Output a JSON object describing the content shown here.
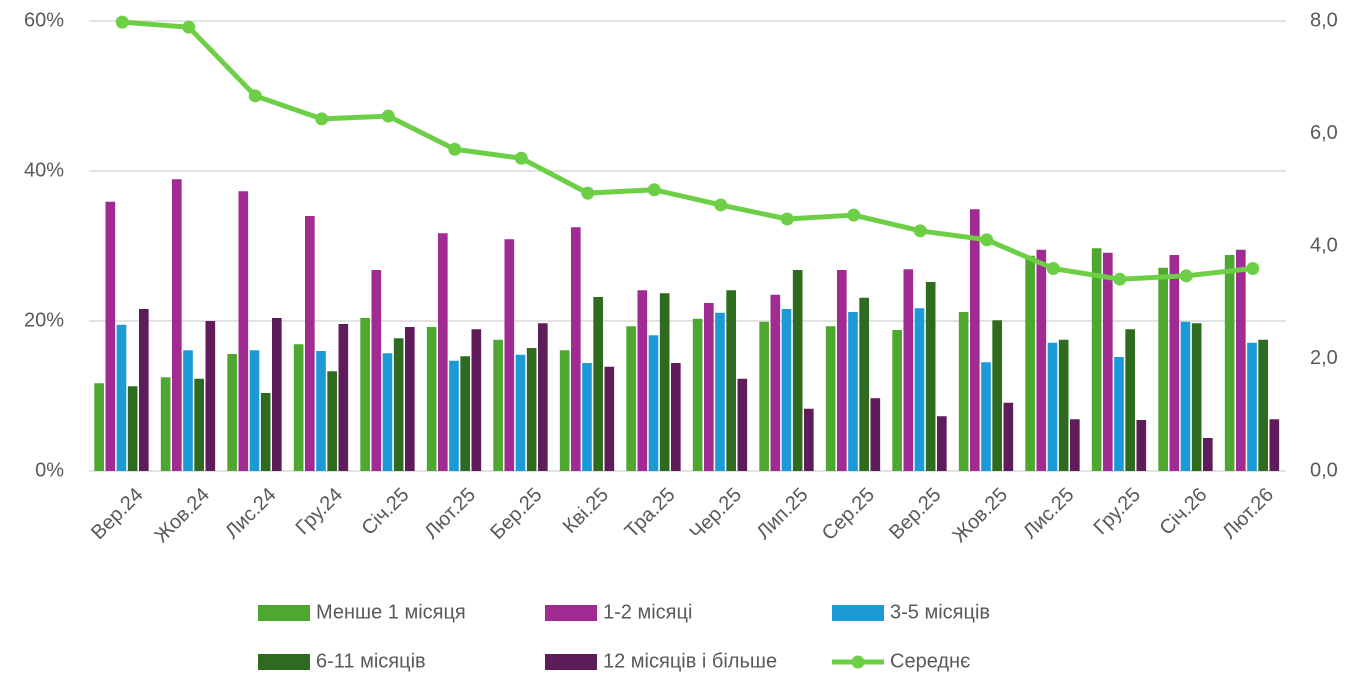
{
  "chart_data": {
    "type": "bar",
    "categories": [
      "Вер.24",
      "Жов.24",
      "Лис.24",
      "Гру.24",
      "Січ.25",
      "Лют.25",
      "Бер.25",
      "Кві.25",
      "Тра.25",
      "Чер.25",
      "Лип.25",
      "Сер.25",
      "Вер.25",
      "Жов.25",
      "Лис.25",
      "Гру.25",
      "Січ.26",
      "Лют.26"
    ],
    "series": [
      {
        "name": "Менше 1 місяця",
        "color": "#4ea72e",
        "values": [
          11.7,
          12.5,
          15.6,
          16.9,
          20.4,
          19.2,
          17.5,
          16.1,
          19.3,
          20.3,
          19.9,
          19.3,
          18.8,
          21.2,
          28.7,
          29.7,
          27.1,
          28.8
        ]
      },
      {
        "name": "1-2 місяці",
        "color": "#a02b93",
        "values": [
          35.9,
          38.9,
          37.3,
          34,
          26.8,
          31.7,
          30.9,
          32.5,
          24.1,
          22.4,
          23.5,
          26.8,
          26.9,
          34.9,
          29.5,
          29.1,
          28.8,
          29.5
        ]
      },
      {
        "name": "3-5 місяців",
        "color": "#1b9ad6",
        "values": [
          19.5,
          16.1,
          16.1,
          16,
          15.7,
          14.7,
          15.5,
          14.4,
          18.1,
          21.1,
          21.6,
          21.2,
          21.7,
          14.5,
          17.1,
          15.2,
          19.9,
          17.1
        ]
      },
      {
        "name": "6-11 місяців",
        "color": "#2e6b1e",
        "values": [
          11.3,
          12.3,
          10.4,
          13.3,
          17.7,
          15.3,
          16.4,
          23.2,
          23.7,
          24.1,
          26.8,
          23.1,
          25.2,
          20.1,
          17.5,
          18.9,
          19.7,
          17.5
        ]
      },
      {
        "name": "12 місяців і більше",
        "color": "#5e1c5a",
        "values": [
          21.6,
          20,
          20.4,
          19.6,
          19.2,
          18.9,
          19.7,
          13.9,
          14.4,
          12.3,
          8.3,
          9.7,
          7.3,
          9.1,
          6.9,
          6.8,
          4.4,
          6.9
        ]
      },
      {
        "name": "Середнє",
        "color": "#6ccf45",
        "type": "line",
        "axis": "y2",
        "values": [
          7.98,
          7.89,
          6.67,
          6.26,
          6.31,
          5.72,
          5.56,
          4.94,
          5.0,
          4.73,
          4.48,
          4.55,
          4.27,
          4.11,
          3.6,
          3.41,
          3.47,
          3.6
        ]
      }
    ],
    "ylim": [
      0,
      60
    ],
    "yticks": [
      {
        "value": 0,
        "label": "0%"
      },
      {
        "value": 20,
        "label": "20%"
      },
      {
        "value": 40,
        "label": "40%"
      },
      {
        "value": 60,
        "label": "60%"
      }
    ],
    "y2lim": [
      0,
      8
    ],
    "y2ticks": [
      {
        "value": 0,
        "label": "0,0"
      },
      {
        "value": 2,
        "label": "2,0"
      },
      {
        "value": 4,
        "label": "4,0"
      },
      {
        "value": 6,
        "label": "6,0"
      },
      {
        "value": 8,
        "label": "8,0"
      }
    ],
    "grid": true,
    "legend": "bottom"
  }
}
